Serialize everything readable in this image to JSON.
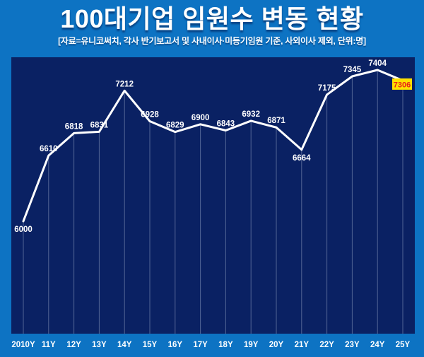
{
  "chart_data": {
    "type": "line",
    "title": "100대기업 임원수 변동 현황",
    "subtitle": "[자료=유니코써치, 각사 반기보고서 및 사내이사·미등기임원 기준, 사외이사 제외, 단위:명]",
    "categories": [
      "2010Y",
      "11Y",
      "12Y",
      "13Y",
      "14Y",
      "15Y",
      "16Y",
      "17Y",
      "18Y",
      "19Y",
      "20Y",
      "21Y",
      "22Y",
      "23Y",
      "24Y",
      "25Y"
    ],
    "values": [
      6000,
      6610,
      6818,
      6831,
      7212,
      6928,
      6829,
      6900,
      6843,
      6932,
      6871,
      6664,
      7175,
      7345,
      7404,
      7306
    ],
    "label_positions": [
      "below",
      "above",
      "above",
      "above",
      "above",
      "above",
      "above",
      "above",
      "above",
      "above",
      "above",
      "below",
      "above",
      "above",
      "above",
      "highlight"
    ],
    "highlight_index": 15,
    "highlight_value": "7306",
    "ylim": [
      6000,
      7404
    ],
    "xlabel": "",
    "ylabel": "",
    "legend": "none",
    "grid": "vertical-drop-lines",
    "colors": {
      "background": "#0d73c3",
      "panel": "#0a2163",
      "line": "#ffffff",
      "value_label": "#ffffff",
      "axis_label": "#ffffff",
      "grid_line": "rgba(202,213,234,0.38)",
      "highlight_bg": "#ffe100",
      "highlight_text": "#e8231a"
    }
  }
}
